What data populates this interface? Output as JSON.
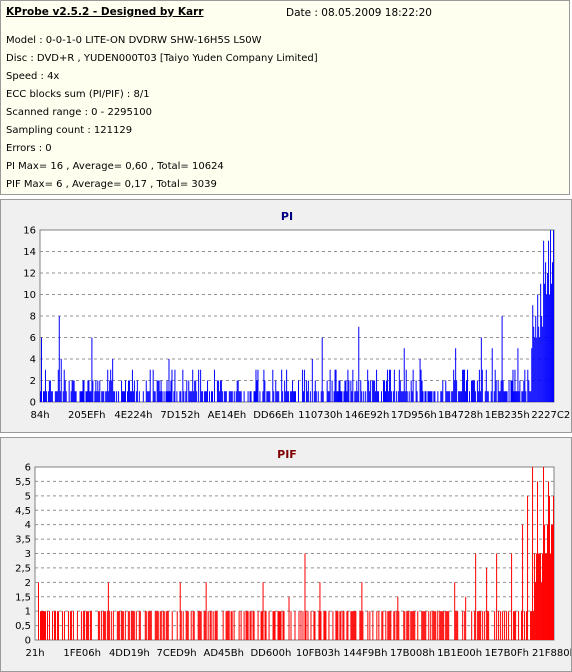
{
  "info": {
    "title": "KProbe v2.5.2 - Designed by Karr",
    "date": "Date : 08.05.2009 18:22:20",
    "lines": [
      "Model : 0-0-1-0 LITE-ON DVDRW SHW-16H5S  LS0W",
      "Disc : DVD+R , YUDEN000T03 [Taiyo Yuden Company Limited]",
      "Speed : 4x",
      "ECC blocks sum (PI/PIF) : 8/1",
      "Scanned range : 0 - 2295100",
      "Sampling count : 121129",
      "Errors : 0",
      "PI Max= 16 , Average= 0,60 , Total= 10624",
      "PIF Max= 6 , Average= 0,17 , Total= 3039"
    ]
  },
  "chart_data": [
    {
      "type": "bar",
      "title": "PI",
      "color": "#0000ff",
      "ylim": [
        0,
        16
      ],
      "yticks": [
        "0",
        "2",
        "4",
        "6",
        "8",
        "10",
        "12",
        "14",
        "16"
      ],
      "xticks": [
        "84h",
        "205EFh",
        "4E224h",
        "7D152h",
        "AE14Eh",
        "DD66Eh",
        "110730h",
        "146E92h",
        "17D956h",
        "1B4728h",
        "1EB235h",
        "2227C2h"
      ],
      "grid": true,
      "sample_count": 520,
      "baseline": [
        0,
        3
      ],
      "peaks": [
        [
          0.002,
          6
        ],
        [
          0.036,
          8
        ],
        [
          0.04,
          4
        ],
        [
          0.1,
          6
        ],
        [
          0.14,
          4
        ],
        [
          0.18,
          3
        ],
        [
          0.25,
          4
        ],
        [
          0.34,
          3
        ],
        [
          0.42,
          3
        ],
        [
          0.48,
          3
        ],
        [
          0.53,
          4
        ],
        [
          0.55,
          6
        ],
        [
          0.62,
          7
        ],
        [
          0.71,
          5
        ],
        [
          0.74,
          4
        ],
        [
          0.81,
          5
        ],
        [
          0.86,
          6
        ],
        [
          0.88,
          5
        ],
        [
          0.9,
          8
        ],
        [
          0.93,
          5
        ],
        [
          0.96,
          9
        ],
        [
          0.97,
          10
        ],
        [
          0.975,
          11
        ],
        [
          0.98,
          15
        ],
        [
          0.985,
          13
        ],
        [
          0.99,
          15
        ],
        [
          0.995,
          16
        ],
        [
          1.0,
          16
        ]
      ]
    },
    {
      "type": "bar",
      "title": "PIF",
      "color": "#ff0000",
      "ylim": [
        0,
        6
      ],
      "yticks": [
        "0",
        "0,5",
        "1",
        "1,5",
        "2",
        "2,5",
        "3",
        "3,5",
        "4",
        "4,5",
        "5",
        "5,5",
        "6"
      ],
      "xticks": [
        "21h",
        "1FE06h",
        "4DD19h",
        "7CED9h",
        "AD45Bh",
        "DD600h",
        "10FB03h",
        "144F9Bh",
        "17B008h",
        "1B1E00h",
        "1E7B0Fh",
        "21F880h"
      ],
      "grid": true,
      "sample_count": 520,
      "baseline": [
        0,
        1
      ],
      "peaks": [
        [
          0.005,
          2
        ],
        [
          0.1,
          1
        ],
        [
          0.14,
          2
        ],
        [
          0.17,
          1
        ],
        [
          0.28,
          2
        ],
        [
          0.33,
          2
        ],
        [
          0.44,
          2
        ],
        [
          0.49,
          1.5
        ],
        [
          0.52,
          3
        ],
        [
          0.55,
          2
        ],
        [
          0.58,
          1
        ],
        [
          0.63,
          2
        ],
        [
          0.7,
          1.5
        ],
        [
          0.78,
          1
        ],
        [
          0.81,
          2
        ],
        [
          0.83,
          1.5
        ],
        [
          0.85,
          3
        ],
        [
          0.87,
          2.5
        ],
        [
          0.89,
          3
        ],
        [
          0.92,
          3
        ],
        [
          0.94,
          4
        ],
        [
          0.95,
          5
        ],
        [
          0.96,
          6
        ],
        [
          0.97,
          5.5
        ],
        [
          0.98,
          6
        ],
        [
          0.99,
          5.5
        ],
        [
          1.0,
          5
        ]
      ]
    }
  ]
}
